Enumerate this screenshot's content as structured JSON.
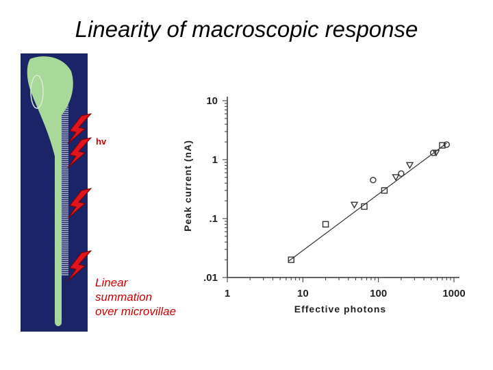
{
  "title": "Linearity of macroscopic response",
  "annotations": {
    "light_label": "hv",
    "caption_lines": [
      "Linear",
      "summation",
      "over microvillae"
    ]
  },
  "colors": {
    "cell_background": "#1a2466",
    "cell_body": "#a8d89a",
    "lightning": "#e0141c",
    "caption": "#cc0000"
  },
  "icons": [
    "lightning-bolt-icon",
    "photoreceptor-cell-illustration"
  ],
  "chart_data": {
    "type": "scatter",
    "xscale": "log",
    "yscale": "log",
    "xlim": [
      1,
      1000
    ],
    "ylim": [
      0.01,
      10
    ],
    "xlabel": "Effective photons",
    "ylabel": "Peak current (nA)",
    "xticks": [
      "1",
      "10",
      "100",
      "1000"
    ],
    "yticks": [
      ".01",
      ".1",
      "1",
      "10"
    ],
    "fit_line": [
      [
        6.5,
        0.019
      ],
      [
        800,
        1.9
      ]
    ],
    "series": [
      {
        "marker": "square",
        "points": [
          [
            7,
            0.02
          ],
          [
            20,
            0.08
          ],
          [
            65,
            0.16
          ],
          [
            120,
            0.3
          ],
          [
            700,
            1.75
          ]
        ]
      },
      {
        "marker": "triangle-down",
        "points": [
          [
            48,
            0.17
          ],
          [
            170,
            0.5
          ],
          [
            260,
            0.8
          ],
          [
            580,
            1.3
          ]
        ]
      },
      {
        "marker": "circle",
        "points": [
          [
            85,
            0.45
          ],
          [
            200,
            0.58
          ],
          [
            530,
            1.3
          ],
          [
            800,
            1.8
          ]
        ]
      }
    ]
  }
}
